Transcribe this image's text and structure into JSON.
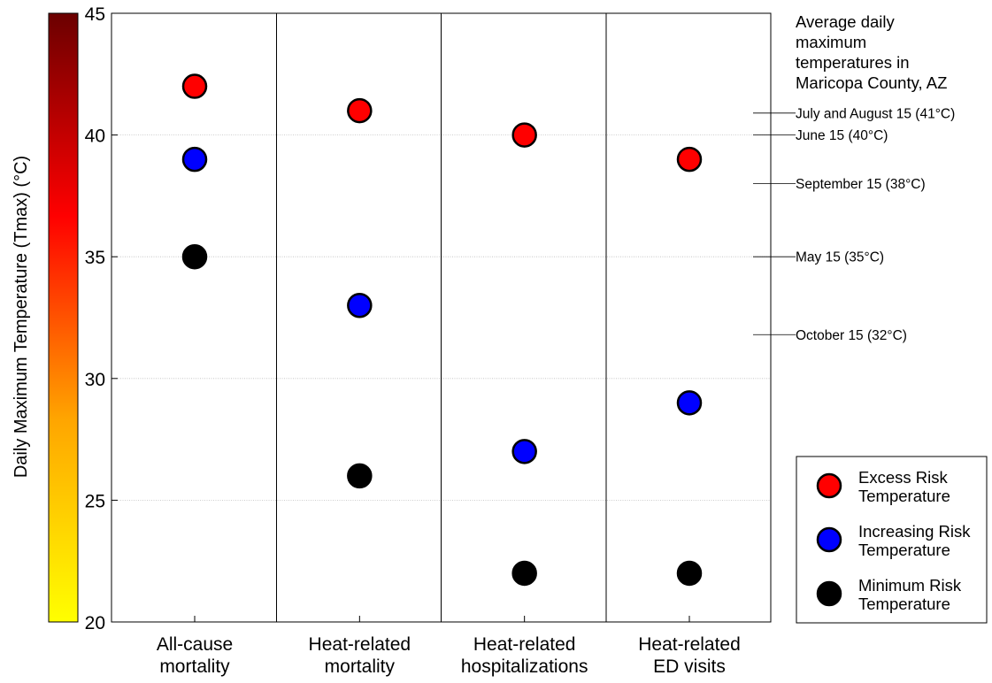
{
  "chart_data": {
    "type": "scatter",
    "ylabel": "Daily Maximum Temperature (Tmax) (°C)",
    "ylim": [
      20,
      45
    ],
    "yticks": [
      20,
      25,
      30,
      35,
      40,
      45
    ],
    "grid": true,
    "categories": [
      [
        "All-cause",
        "mortality"
      ],
      [
        "Heat-related",
        "mortality"
      ],
      [
        "Heat-related",
        "hospitalizations"
      ],
      [
        "Heat-related",
        "ED visits"
      ]
    ],
    "series": [
      {
        "name": "Excess Risk Temperature",
        "legend_lines": [
          "Excess Risk",
          "Temperature"
        ],
        "color": "#ff0000",
        "values": [
          42,
          41,
          40,
          39
        ]
      },
      {
        "name": "Increasing Risk Temperature",
        "legend_lines": [
          "Increasing Risk",
          "Temperature"
        ],
        "color": "#0000ff",
        "values": [
          39,
          33,
          27,
          29
        ]
      },
      {
        "name": "Minimum Risk Temperature",
        "legend_lines": [
          "Minimum Risk",
          "Temperature"
        ],
        "color": "#000000",
        "values": [
          35,
          26,
          22,
          22
        ]
      }
    ],
    "colorbar": {
      "range": [
        20,
        45
      ],
      "colors": [
        "#ffff00",
        "#ffa500",
        "#ff0000",
        "#6b0000"
      ]
    },
    "legend_position": "bottom-right",
    "annotation_title": [
      "Average daily",
      "maximum",
      "temperatures in",
      "Maricopa County, AZ"
    ],
    "annotations": [
      {
        "label": "July and August 15 (41°C)",
        "value": 40.9
      },
      {
        "label": "June 15 (40°C)",
        "value": 40
      },
      {
        "label": "September 15 (38°C)",
        "value": 38
      },
      {
        "label": "May 15 (35°C)",
        "value": 35
      },
      {
        "label": "October 15 (32°C)",
        "value": 31.8
      }
    ]
  }
}
